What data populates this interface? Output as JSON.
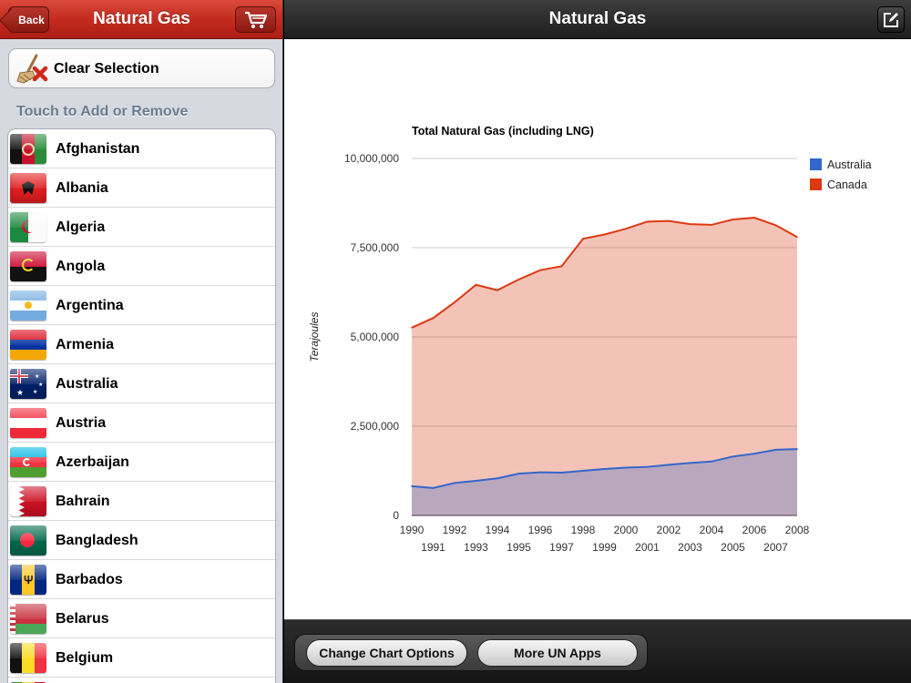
{
  "left": {
    "title": "Natural Gas",
    "back_label": "Back",
    "clear_label": "Clear Selection",
    "section_header": "Touch to Add or Remove",
    "countries": [
      {
        "name": "Afghanistan",
        "flag": "afghanistan-flag"
      },
      {
        "name": "Albania",
        "flag": "albania-flag"
      },
      {
        "name": "Algeria",
        "flag": "algeria-flag"
      },
      {
        "name": "Angola",
        "flag": "angola-flag"
      },
      {
        "name": "Argentina",
        "flag": "argentina-flag"
      },
      {
        "name": "Armenia",
        "flag": "armenia-flag"
      },
      {
        "name": "Australia",
        "flag": "australia-flag"
      },
      {
        "name": "Austria",
        "flag": "austria-flag"
      },
      {
        "name": "Azerbaijan",
        "flag": "azerbaijan-flag"
      },
      {
        "name": "Bahrain",
        "flag": "bahrain-flag"
      },
      {
        "name": "Bangladesh",
        "flag": "bangladesh-flag"
      },
      {
        "name": "Barbados",
        "flag": "barbados-flag"
      },
      {
        "name": "Belarus",
        "flag": "belarus-flag"
      },
      {
        "name": "Belgium",
        "flag": "belgium-flag"
      },
      {
        "name": "",
        "flag": "partial-flag"
      }
    ]
  },
  "right": {
    "title": "Natural Gas",
    "buttons": {
      "chart_options": "Change Chart Options",
      "more_apps": "More UN Apps"
    }
  },
  "icons": {
    "cart": "shopping-cart-icon",
    "compose": "compose-icon",
    "clear": "broom-x-icon"
  },
  "colors": {
    "nav_red": "#c42b1f",
    "australia": "#3366cc",
    "canada": "#dc3912"
  },
  "chart_data": {
    "type": "area",
    "title": "Total Natural Gas (including LNG)",
    "xlabel": "",
    "ylabel": "Terajoules",
    "x": [
      1990,
      1991,
      1992,
      1993,
      1994,
      1995,
      1996,
      1997,
      1998,
      1999,
      2000,
      2001,
      2002,
      2003,
      2004,
      2005,
      2006,
      2007,
      2008
    ],
    "ylim": [
      0,
      10000000
    ],
    "yticks": [
      "0",
      "2,500,000",
      "5,000,000",
      "7,500,000",
      "10,000,000"
    ],
    "xticks": [
      "1990",
      "1991",
      "1992",
      "1993",
      "1994",
      "1995",
      "1996",
      "1997",
      "1998",
      "1999",
      "2000",
      "2001",
      "2002",
      "2003",
      "2004",
      "2005",
      "2006",
      "2007",
      "2008"
    ],
    "series": [
      {
        "name": "Australia",
        "color": "#3366cc",
        "values": [
          820000,
          770000,
          910000,
          970000,
          1040000,
          1170000,
          1210000,
          1200000,
          1250000,
          1300000,
          1340000,
          1360000,
          1420000,
          1470000,
          1510000,
          1650000,
          1730000,
          1840000,
          1860000
        ]
      },
      {
        "name": "Canada",
        "color": "#dc3912",
        "values": [
          5260000,
          5530000,
          5970000,
          6460000,
          6310000,
          6610000,
          6870000,
          6980000,
          7750000,
          7870000,
          8030000,
          8230000,
          8250000,
          8160000,
          8140000,
          8290000,
          8340000,
          8130000,
          7800000
        ]
      }
    ],
    "legend": "right",
    "grid": true
  }
}
